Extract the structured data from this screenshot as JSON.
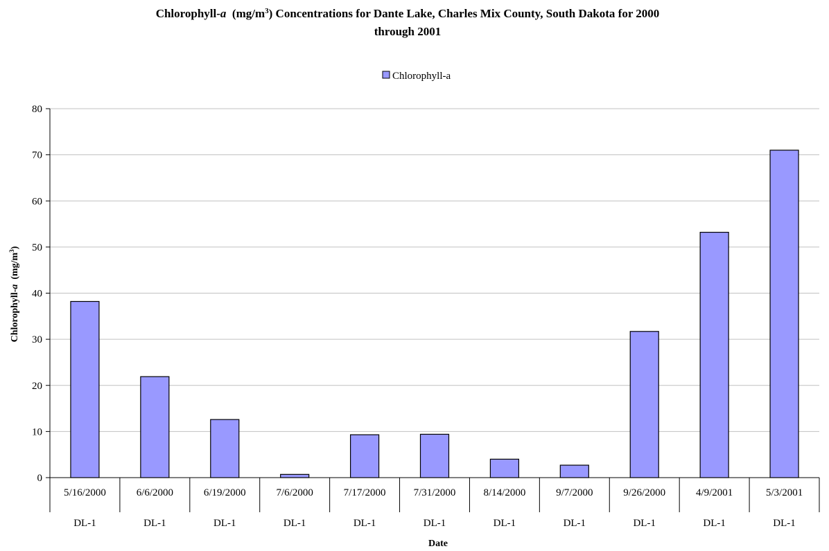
{
  "chart_data": {
    "type": "bar",
    "title_parts": {
      "prefix": "Chlorophyll-",
      "italic": "a",
      "unit_open": "  (mg/m",
      "unit_sup": "3",
      "suffix": ") Concentrations for Dante Lake, Charles Mix County, South Dakota for 2000",
      "line2": "through 2001"
    },
    "ylabel_parts": {
      "prefix": "Chlorophyll-",
      "italic": "a",
      "unit_open": "  (mg/m",
      "unit_sup": "3",
      "unit_close": ")"
    },
    "xlabel": "Date",
    "legend": {
      "label": "Chlorophyll-a",
      "position": "top-center"
    },
    "categories": [
      "5/16/2000",
      "6/6/2000",
      "6/19/2000",
      "7/6/2000",
      "7/17/2000",
      "7/31/2000",
      "8/14/2000",
      "9/7/2000",
      "9/26/2000",
      "4/9/2001",
      "5/3/2001"
    ],
    "sites": [
      "DL-1",
      "DL-1",
      "DL-1",
      "DL-1",
      "DL-1",
      "DL-1",
      "DL-1",
      "DL-1",
      "DL-1",
      "DL-1",
      "DL-1"
    ],
    "series": [
      {
        "name": "Chlorophyll-a",
        "values": [
          38.2,
          21.9,
          12.6,
          0.7,
          9.3,
          9.4,
          4.0,
          2.7,
          31.7,
          53.2,
          71.0
        ]
      }
    ],
    "ylim": [
      0,
      80
    ],
    "yticks": [
      0,
      10,
      20,
      30,
      40,
      50,
      60,
      70,
      80
    ],
    "grid": true,
    "colors": {
      "bar_fill": "#9999ff",
      "bar_stroke": "#000000",
      "grid": "#c0c0c0",
      "axis": "#000000"
    }
  }
}
